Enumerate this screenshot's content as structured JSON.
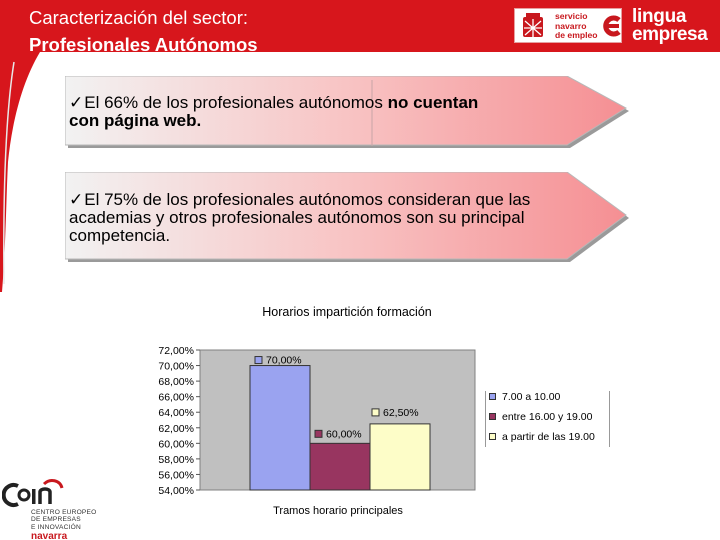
{
  "header": {
    "title_line1": "Caracterización del sector:",
    "title_line2": "Profesionales  Autónomos",
    "band_color": "#d7161c"
  },
  "logos": {
    "sne": {
      "line1": "servicio",
      "line2": "navarro",
      "line3": "de empleo"
    },
    "lingua": {
      "line1": "lingua",
      "line2": "empresa"
    },
    "cein": {
      "mark": "cein",
      "line1": "CENTRO EUROPEO",
      "line2": "DE EMPRESAS",
      "line3": "E INNOVACIÓN",
      "region": "navarra"
    }
  },
  "callouts": [
    {
      "check": "ü",
      "text": "El 66% de los profesionales autónomos ",
      "bold": "no cuentan con página web."
    },
    {
      "check": "ü",
      "text": "El 75% de los profesionales autónomos consideran que las academias y otros profesionales autónomos son su principal competencia.",
      "bold": ""
    }
  ],
  "chart_data": {
    "type": "bar",
    "title": "Horarios impartición formación",
    "xlabel": "Tramos horario principales",
    "ylabel": "",
    "ylim": [
      54,
      72
    ],
    "yticks": [
      "72,00%",
      "70,00%",
      "68,00%",
      "66,00%",
      "64,00%",
      "62,00%",
      "60,00%",
      "58,00%",
      "56,00%",
      "54,00%"
    ],
    "series": [
      {
        "name": "7.00 a 10.00",
        "value": 70.0,
        "label": "70,00%",
        "color": "#9aa3f0"
      },
      {
        "name": "entre 16.00 y 19.00",
        "value": 60.0,
        "label": "60,00%",
        "color": "#983560"
      },
      {
        "name": "a partir de las 19.00",
        "value": 62.5,
        "label": "62,50%",
        "color": "#fdfdc8"
      }
    ],
    "plot_background": "#c0c0c0",
    "legend_position": "right"
  }
}
